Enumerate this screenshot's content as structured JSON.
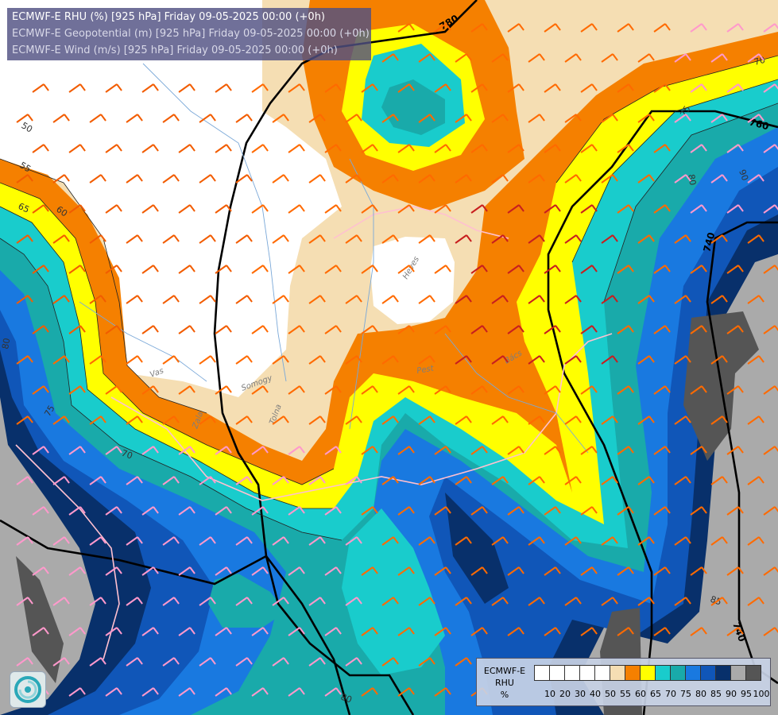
{
  "header": {
    "line1": "ECMWF-E RHU (%) [925 hPa] Friday 09-05-2025 00:00 (+0h)",
    "line2": "ECMWF-E Geopotential (m) [925 hPa] Friday 09-05-2025 00:00 (+0h)",
    "line3": "ECMWF-E Wind (m/s) [925 hPa] Friday 09-05-2025 00:00 (+0h)"
  },
  "legend": {
    "title_model": "ECMWF-E",
    "title_var": "RHU",
    "title_unit": "%",
    "ticks": [
      "10",
      "20",
      "30",
      "40",
      "50",
      "55",
      "60",
      "65",
      "70",
      "75",
      "80",
      "85",
      "90",
      "95",
      "100"
    ],
    "colors": [
      "#ffffff",
      "#ffffff",
      "#ffffff",
      "#ffffff",
      "#ffffff",
      "#f5deb3",
      "#f58000",
      "#ffff00",
      "#19cccc",
      "#19aaaa",
      "#1979e0",
      "#1056b8",
      "#08306b",
      "#aaaaaa",
      "#555555"
    ]
  },
  "contour_labels": {
    "geo_780": "780",
    "geo_760": "760",
    "geo_740a": "740",
    "geo_740b": "740",
    "rh_50": "50",
    "rh_55": "55",
    "rh_60": "60",
    "rh_65": "65",
    "rh_70a": "70",
    "rh_70b": "70",
    "rh_75a": "75",
    "rh_75b": "75",
    "rh_80a": "80",
    "rh_80b": "80",
    "rh_80c": "80",
    "rh_85": "85",
    "rh_90": "90"
  },
  "places": {
    "szolnok": "Somogy",
    "tolna": "Tolna",
    "pest": "Pest",
    "heves": "Heves",
    "bacs": "Bács",
    "zala": "Zala",
    "vas": "Vas"
  },
  "theme": {
    "white": "#ffffff",
    "wheat": "#f5deb3",
    "orange": "#f58000",
    "yellow": "#ffff00",
    "cyan": "#19cccc",
    "teal": "#19aaaa",
    "blue": "#1979e0",
    "midblue": "#1056b8",
    "navy": "#08306b",
    "gray": "#aaaaaa",
    "darkgray": "#555555"
  }
}
